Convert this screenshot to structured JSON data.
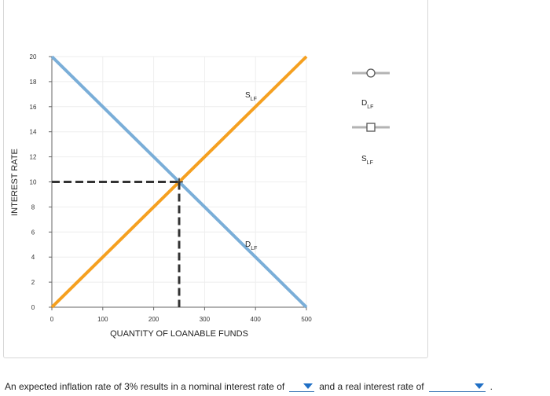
{
  "graph": {
    "y_axis_label": "INTEREST RATE",
    "x_axis_label": "QUANTITY OF LOANABLE FUNDS",
    "x_ticks": [
      "0",
      "100",
      "200",
      "300",
      "400",
      "500"
    ],
    "y_ticks": [
      "0",
      "2",
      "4",
      "6",
      "8",
      "10",
      "12",
      "14",
      "16",
      "18",
      "20"
    ],
    "supply_label_main": "S",
    "supply_label_sub": "LF",
    "demand_label_main": "D",
    "demand_label_sub": "LF"
  },
  "legend": {
    "demand_main": "D",
    "demand_sub": "LF",
    "supply_main": "S",
    "supply_sub": "LF"
  },
  "chart_data": {
    "type": "line",
    "xlabel": "QUANTITY OF LOANABLE FUNDS",
    "ylabel": "INTEREST RATE",
    "xlim": [
      0,
      500
    ],
    "ylim": [
      0,
      20
    ],
    "series": [
      {
        "name": "D LF",
        "points": [
          [
            0,
            20
          ],
          [
            500,
            0
          ]
        ],
        "color": "#7aaed8"
      },
      {
        "name": "S LF",
        "points": [
          [
            0,
            0
          ],
          [
            500,
            20
          ]
        ],
        "color": "#f5a020"
      }
    ],
    "equilibrium": {
      "x": 250,
      "y": 10,
      "color": "#333333"
    }
  },
  "question": {
    "part1": "An expected inflation rate of 3% results in a nominal interest rate of",
    "part2": "and a real interest rate of",
    "end": ".",
    "nominal_value": "",
    "real_value": ""
  },
  "colors": {
    "demand": "#7aaed8",
    "supply": "#f5a020",
    "grid": "#eeeeee",
    "legend_line": "#b3b3b3"
  }
}
